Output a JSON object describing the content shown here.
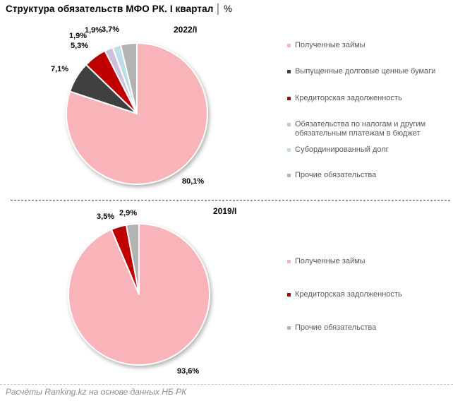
{
  "header": {
    "title": "Структура обязательств МФО РК. I квартал",
    "divider": "│",
    "unit": "%"
  },
  "footer": {
    "source": "Расчёты Ranking.kz на основе данных НБ РК"
  },
  "colors": {
    "pink": "#F8B4B9",
    "dark_gray": "#404040",
    "red": "#C00000",
    "lavender": "#CCC0DA",
    "light_blue": "#BDDDE8",
    "gray": "#B3B3B3",
    "legend_text": "#595959",
    "separator_dark": "#404040",
    "separator_light": "#C6C6C6"
  },
  "chart_data": [
    {
      "type": "pie",
      "title": "2022/I",
      "start_angle_deg": 0,
      "direction": "clockwise",
      "legend_position": "right",
      "slices": [
        {
          "name": "Полученные займы",
          "value": 80.1,
          "label": "80,1%",
          "color": "#F8B4B9"
        },
        {
          "name": "Выпущенные долговые ценные бумаги",
          "value": 7.1,
          "label": "7,1%",
          "color": "#404040"
        },
        {
          "name": "Кредиторская задолженность",
          "value": 5.3,
          "label": "5,3%",
          "color": "#C00000"
        },
        {
          "name": "Обязательства по налогам и другим обязательным платежам в бюджет",
          "value": 1.9,
          "label": "1,9%",
          "color": "#CCC0DA"
        },
        {
          "name": "Субординированный долг",
          "value": 1.9,
          "label": "1,9%",
          "color": "#BDDDE8"
        },
        {
          "name": "Прочие обязательства",
          "value": 3.7,
          "label": "3,7%",
          "color": "#B3B3B3"
        }
      ]
    },
    {
      "type": "pie",
      "title": "2019/I",
      "start_angle_deg": 0,
      "direction": "clockwise",
      "legend_position": "right",
      "slices": [
        {
          "name": "Полученные займы",
          "value": 93.6,
          "label": "93,6%",
          "color": "#F8B4B9"
        },
        {
          "name": "Кредиторская задолженность",
          "value": 3.5,
          "label": "3,5%",
          "color": "#C00000"
        },
        {
          "name": "Прочие обязательства",
          "value": 2.9,
          "label": "2,9%",
          "color": "#B3B3B3"
        }
      ]
    }
  ]
}
